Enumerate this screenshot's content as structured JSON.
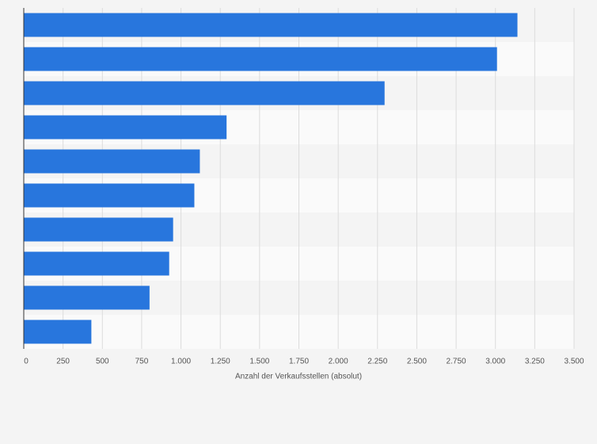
{
  "chart_data": {
    "type": "bar",
    "orientation": "horizontal",
    "x_label": "Anzahl der Verkaufsstellen (absolut)",
    "categories": [
      null,
      null,
      null,
      null,
      null,
      null,
      null,
      null,
      null,
      null
    ],
    "values": [
      3140,
      3010,
      2295,
      1290,
      1120,
      1085,
      950,
      925,
      800,
      430
    ],
    "color": "#2876dd",
    "xlim": [
      0,
      3500
    ],
    "xticks": [
      0,
      250,
      500,
      750,
      {
        "value": 1000,
        "label": "1.000"
      },
      {
        "value": 1250,
        "label": "1.250"
      },
      {
        "value": 1500,
        "label": "1.500"
      },
      {
        "value": 1750,
        "label": "1.750"
      },
      {
        "value": 2000,
        "label": "2.000"
      },
      {
        "value": 2250,
        "label": "2.250"
      },
      {
        "value": 2500,
        "label": "2.500"
      },
      {
        "value": 2750,
        "label": "2.750"
      },
      {
        "value": 3000,
        "label": "3.000"
      },
      {
        "value": 3250,
        "label": "3.250"
      },
      {
        "value": 3500,
        "label": "3.500"
      }
    ],
    "grid": true
  }
}
